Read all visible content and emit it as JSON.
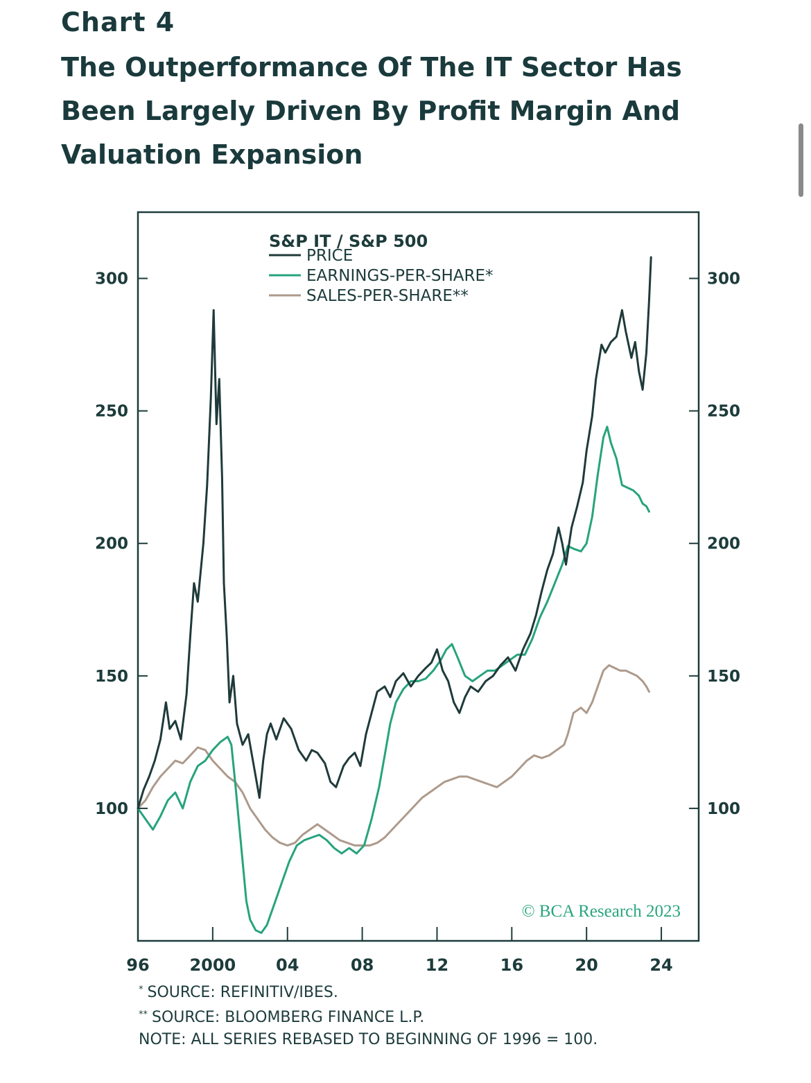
{
  "header": {
    "chart_number": "Chart 4",
    "title": "The Outperformance Of The IT Sector Has Been Largely Driven By Profit Margin And Valuation Expansion"
  },
  "colors": {
    "price": "#1f3a3a",
    "eps": "#27a37d",
    "sps": "#ad9a8b",
    "frame": "#1d3b3b",
    "copyright": "#2aa57f"
  },
  "copyright": "© BCA Research 2023",
  "footnotes": [
    {
      "mark": "*",
      "text": "SOURCE: REFINITIV/IBES."
    },
    {
      "mark": "**",
      "text": "SOURCE: BLOOMBERG FINANCE L.P."
    },
    {
      "mark": "",
      "text": "NOTE: ALL SERIES REBASED TO BEGINNING OF 1996 = 100."
    }
  ],
  "chart_data": {
    "type": "line",
    "legend_title": "S&P IT / S&P 500",
    "legend_position": "top-left",
    "grid": false,
    "xlim": [
      1996,
      2026
    ],
    "ylim": [
      50,
      325
    ],
    "x_ticks": [
      1996,
      2000,
      2004,
      2008,
      2012,
      2016,
      2020,
      2024
    ],
    "x_tick_labels": [
      "96",
      "2000",
      "04",
      "08",
      "12",
      "16",
      "20",
      "24"
    ],
    "y_ticks": [
      100,
      150,
      200,
      250,
      300
    ],
    "y_tick_labels": [
      "100",
      "150",
      "200",
      "250",
      "300"
    ],
    "series": [
      {
        "name": "PRICE",
        "color_key": "price",
        "x": [
          1996.0,
          1996.3,
          1996.6,
          1996.9,
          1997.2,
          1997.5,
          1997.7,
          1998.0,
          1998.3,
          1998.6,
          1998.8,
          1999.0,
          1999.2,
          1999.5,
          1999.7,
          1999.9,
          2000.05,
          2000.2,
          2000.35,
          2000.5,
          2000.6,
          2000.75,
          2000.9,
          2001.1,
          2001.3,
          2001.6,
          2001.9,
          2002.1,
          2002.3,
          2002.5,
          2002.7,
          2002.9,
          2003.1,
          2003.4,
          2003.8,
          2004.2,
          2004.6,
          2005.0,
          2005.3,
          2005.6,
          2006.0,
          2006.3,
          2006.6,
          2007.0,
          2007.3,
          2007.6,
          2007.9,
          2008.2,
          2008.5,
          2008.8,
          2009.2,
          2009.5,
          2009.8,
          2010.2,
          2010.6,
          2011.0,
          2011.4,
          2011.7,
          2012.0,
          2012.3,
          2012.6,
          2012.9,
          2013.2,
          2013.5,
          2013.8,
          2014.2,
          2014.6,
          2015.0,
          2015.4,
          2015.8,
          2016.2,
          2016.6,
          2017.0,
          2017.3,
          2017.6,
          2017.9,
          2018.2,
          2018.5,
          2018.7,
          2018.9,
          2019.2,
          2019.5,
          2019.8,
          2020.0,
          2020.3,
          2020.5,
          2020.8,
          2021.0,
          2021.3,
          2021.6,
          2021.9,
          2022.1,
          2022.4,
          2022.6,
          2022.8,
          2023.0,
          2023.2,
          2023.35,
          2023.45
        ],
        "values": [
          100,
          107,
          112,
          118,
          126,
          140,
          130,
          133,
          126,
          143,
          165,
          185,
          178,
          200,
          222,
          255,
          288,
          245,
          262,
          225,
          185,
          165,
          140,
          150,
          132,
          124,
          128,
          120,
          112,
          104,
          118,
          128,
          132,
          126,
          134,
          130,
          122,
          118,
          122,
          121,
          117,
          110,
          108,
          116,
          119,
          121,
          116,
          128,
          136,
          144,
          146,
          142,
          148,
          151,
          146,
          150,
          153,
          155,
          160,
          152,
          148,
          140,
          136,
          142,
          146,
          144,
          148,
          150,
          154,
          157,
          152,
          160,
          166,
          173,
          182,
          190,
          196,
          206,
          200,
          192,
          206,
          214,
          223,
          235,
          248,
          262,
          275,
          272,
          276,
          278,
          288,
          280,
          270,
          276,
          265,
          258,
          272,
          292,
          308
        ]
      },
      {
        "name": "EARNINGS-PER-SHARE",
        "color_key": "eps",
        "x": [
          1996.0,
          1996.4,
          1996.8,
          1997.2,
          1997.6,
          1998.0,
          1998.4,
          1998.8,
          1999.2,
          1999.6,
          2000.0,
          2000.4,
          2000.8,
          2001.0,
          2001.2,
          2001.4,
          2001.6,
          2001.8,
          2002.0,
          2002.3,
          2002.6,
          2002.9,
          2003.3,
          2003.7,
          2004.1,
          2004.5,
          2004.9,
          2005.3,
          2005.7,
          2006.1,
          2006.5,
          2006.9,
          2007.3,
          2007.7,
          2008.1,
          2008.5,
          2008.9,
          2009.2,
          2009.5,
          2009.8,
          2010.2,
          2010.6,
          2011.0,
          2011.4,
          2011.8,
          2012.2,
          2012.5,
          2012.8,
          2013.1,
          2013.5,
          2013.9,
          2014.3,
          2014.7,
          2015.1,
          2015.5,
          2015.9,
          2016.3,
          2016.7,
          2017.1,
          2017.5,
          2017.9,
          2018.3,
          2018.7,
          2019.0,
          2019.3,
          2019.7,
          2020.0,
          2020.3,
          2020.6,
          2020.9,
          2021.1,
          2021.3,
          2021.6,
          2021.9,
          2022.2,
          2022.5,
          2022.8,
          2023.0,
          2023.2,
          2023.35
        ],
        "values": [
          100,
          96,
          92,
          97,
          103,
          106,
          100,
          110,
          116,
          118,
          122,
          125,
          127,
          124,
          110,
          95,
          80,
          65,
          58,
          54,
          53,
          56,
          64,
          72,
          80,
          86,
          88,
          89,
          90,
          88,
          85,
          83,
          85,
          83,
          86,
          96,
          108,
          120,
          132,
          140,
          145,
          148,
          148,
          149,
          152,
          156,
          160,
          162,
          157,
          150,
          148,
          150,
          152,
          152,
          154,
          156,
          158,
          158,
          164,
          172,
          178,
          185,
          192,
          199,
          198,
          197,
          200,
          210,
          226,
          240,
          244,
          238,
          232,
          222,
          221,
          220,
          218,
          215,
          214,
          212
        ]
      },
      {
        "name": "SALES-PER-SHARE",
        "color_key": "sps",
        "x": [
          1996.0,
          1996.4,
          1996.8,
          1997.2,
          1997.6,
          1998.0,
          1998.4,
          1998.8,
          1999.2,
          1999.6,
          2000.0,
          2000.4,
          2000.8,
          2001.2,
          2001.6,
          2002.0,
          2002.4,
          2002.8,
          2003.2,
          2003.6,
          2004.0,
          2004.4,
          2004.8,
          2005.2,
          2005.6,
          2006.0,
          2006.4,
          2006.8,
          2007.2,
          2007.6,
          2008.0,
          2008.4,
          2008.8,
          2009.2,
          2009.6,
          2010.0,
          2010.4,
          2010.8,
          2011.2,
          2011.6,
          2012.0,
          2012.4,
          2012.8,
          2013.2,
          2013.6,
          2014.0,
          2014.4,
          2014.8,
          2015.2,
          2015.6,
          2016.0,
          2016.4,
          2016.8,
          2017.2,
          2017.6,
          2018.0,
          2018.4,
          2018.8,
          2019.0,
          2019.3,
          2019.7,
          2020.0,
          2020.3,
          2020.6,
          2020.9,
          2021.2,
          2021.5,
          2021.8,
          2022.1,
          2022.4,
          2022.7,
          2023.0,
          2023.2,
          2023.35
        ],
        "values": [
          100,
          103,
          108,
          112,
          115,
          118,
          117,
          120,
          123,
          122,
          118,
          115,
          112,
          110,
          106,
          100,
          96,
          92,
          89,
          87,
          86,
          87,
          90,
          92,
          94,
          92,
          90,
          88,
          87,
          86,
          86,
          86,
          87,
          89,
          92,
          95,
          98,
          101,
          104,
          106,
          108,
          110,
          111,
          112,
          112,
          111,
          110,
          109,
          108,
          110,
          112,
          115,
          118,
          120,
          119,
          120,
          122,
          124,
          128,
          136,
          138,
          136,
          140,
          146,
          152,
          154,
          153,
          152,
          152,
          151,
          150,
          148,
          146,
          144
        ]
      }
    ]
  }
}
